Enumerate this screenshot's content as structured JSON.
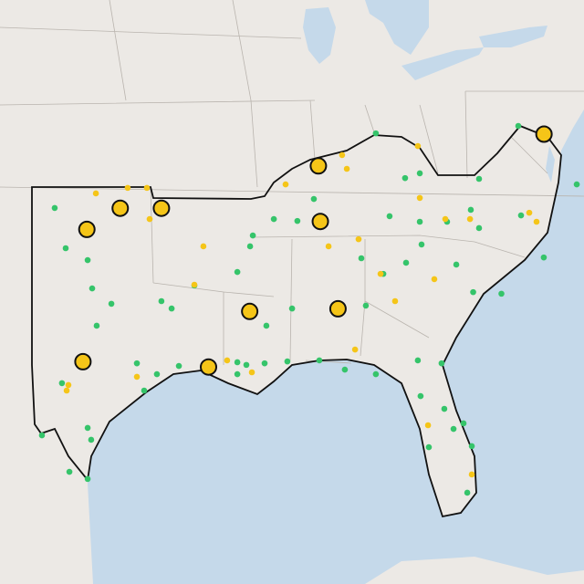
{
  "map": {
    "markers": {
      "green": {
        "color": "#35c46a",
        "size": "small",
        "coords": [
          [
            -101.84,
            36.21
          ],
          [
            -101.28,
            34.69
          ],
          [
            -100.16,
            34.24
          ],
          [
            -99.93,
            33.17
          ],
          [
            -98.95,
            32.59
          ],
          [
            -99.7,
            31.76
          ],
          [
            -97.65,
            30.34
          ],
          [
            -97.28,
            29.31
          ],
          [
            -101.47,
            29.59
          ],
          [
            -102.49,
            27.62
          ],
          [
            -99.98,
            27.45
          ],
          [
            -101.09,
            26.24
          ],
          [
            -100.16,
            25.97
          ],
          [
            -100.16,
            27.9
          ],
          [
            -96.4,
            32.69
          ],
          [
            -95.88,
            32.41
          ],
          [
            -94.72,
            33.28
          ],
          [
            -96.63,
            29.93
          ],
          [
            -95.51,
            30.24
          ],
          [
            -92.53,
            33.79
          ],
          [
            -91.74,
            35.17
          ],
          [
            -91.88,
            34.76
          ],
          [
            -91.05,
            31.76
          ],
          [
            -92.53,
            30.38
          ],
          [
            -89.74,
            32.41
          ],
          [
            -89.98,
            30.41
          ],
          [
            -88.35,
            30.45
          ],
          [
            -87.05,
            30.1
          ],
          [
            -85.98,
            32.52
          ],
          [
            -85.47,
            29.93
          ],
          [
            -83.33,
            30.45
          ],
          [
            -82.12,
            30.34
          ],
          [
            -81.98,
            28.62
          ],
          [
            -83.19,
            29.1
          ],
          [
            -81.0,
            28.07
          ],
          [
            -80.58,
            27.21
          ],
          [
            -80.81,
            25.45
          ],
          [
            -82.77,
            27.17
          ],
          [
            -81.51,
            27.86
          ],
          [
            -79.07,
            32.97
          ],
          [
            -80.51,
            33.03
          ],
          [
            -76.91,
            34.34
          ],
          [
            -78.07,
            35.93
          ],
          [
            -75.23,
            37.1
          ],
          [
            -78.21,
            39.31
          ],
          [
            -80.21,
            37.31
          ],
          [
            -83.23,
            37.52
          ],
          [
            -83.98,
            37.34
          ],
          [
            -85.47,
            39.03
          ],
          [
            -88.63,
            36.55
          ],
          [
            -90.67,
            35.79
          ],
          [
            -84.77,
            35.9
          ],
          [
            -83.23,
            35.69
          ],
          [
            -81.84,
            35.69
          ],
          [
            -80.63,
            36.14
          ],
          [
            -80.21,
            35.45
          ],
          [
            -83.14,
            34.83
          ],
          [
            -81.37,
            34.07
          ],
          [
            -83.93,
            34.14
          ],
          [
            -85.09,
            33.72
          ],
          [
            -86.21,
            34.31
          ],
          [
            -89.47,
            35.72
          ],
          [
            -92.07,
            30.28
          ],
          [
            -92.53,
            29.93
          ],
          [
            -91.14,
            30.34
          ]
        ]
      },
      "yellow": {
        "color": "#f5c518",
        "size": "small",
        "coords": [
          [
            -99.74,
            36.76
          ],
          [
            -98.12,
            36.97
          ],
          [
            -97.14,
            36.97
          ],
          [
            -97.0,
            35.79
          ],
          [
            -94.26,
            34.76
          ],
          [
            -94.72,
            33.31
          ],
          [
            -101.23,
            29.31
          ],
          [
            -101.14,
            29.52
          ],
          [
            -97.65,
            29.83
          ],
          [
            -93.05,
            30.45
          ],
          [
            -91.79,
            30.0
          ],
          [
            -90.07,
            37.1
          ],
          [
            -86.95,
            37.69
          ],
          [
            -87.19,
            38.21
          ],
          [
            -83.33,
            38.55
          ],
          [
            -83.23,
            36.59
          ],
          [
            -86.35,
            35.03
          ],
          [
            -87.88,
            34.76
          ],
          [
            -85.23,
            33.72
          ],
          [
            -84.49,
            32.69
          ],
          [
            -81.93,
            35.79
          ],
          [
            -80.67,
            35.79
          ],
          [
            -77.65,
            36.03
          ],
          [
            -77.28,
            35.69
          ],
          [
            -82.49,
            33.52
          ],
          [
            -82.81,
            28.0
          ],
          [
            -80.58,
            26.14
          ],
          [
            -86.53,
            30.86
          ]
        ]
      },
      "yellow_large": {
        "color": "#f5c518",
        "size": "large",
        "coords": [
          [
            -88.4,
            37.8
          ],
          [
            -76.9,
            39.0
          ],
          [
            -98.5,
            36.2
          ],
          [
            -96.4,
            36.2
          ],
          [
            -100.2,
            35.4
          ],
          [
            -88.3,
            35.7
          ],
          [
            -91.9,
            32.3
          ],
          [
            -87.4,
            32.4
          ],
          [
            -100.4,
            30.4
          ],
          [
            -94.0,
            30.2
          ]
        ]
      }
    }
  }
}
